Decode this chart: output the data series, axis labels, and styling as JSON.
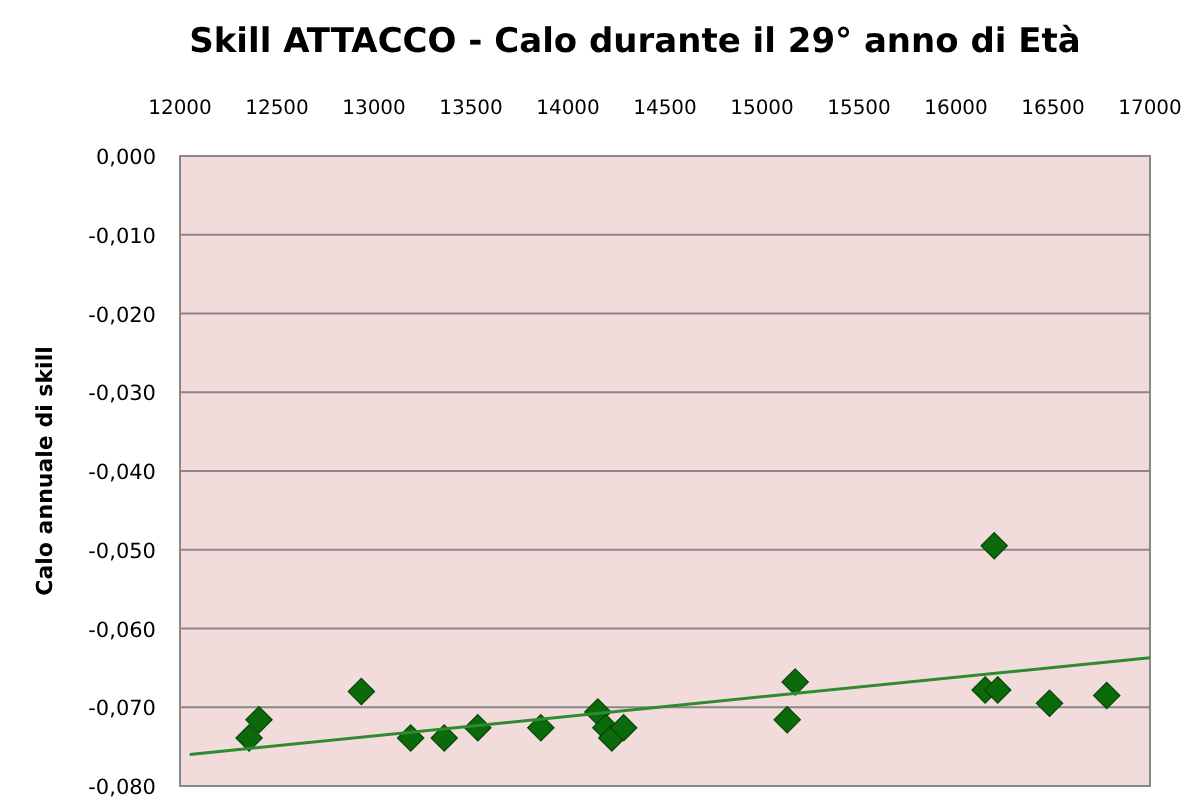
{
  "chart_data": {
    "type": "scatter",
    "title": "Skill ATTACCO - Calo durante il 29° anno di Età",
    "ylabel": "Calo annuale di skill",
    "xlim": [
      12000,
      17000
    ],
    "xticks": [
      12000,
      12500,
      13000,
      13500,
      14000,
      14500,
      15000,
      15500,
      16000,
      16500,
      17000
    ],
    "ylim": [
      -0.08,
      0
    ],
    "yticks": [
      {
        "value": 0,
        "label": "0,000"
      },
      {
        "value": -0.01,
        "label": "-0,010"
      },
      {
        "value": -0.02,
        "label": "-0,020"
      },
      {
        "value": -0.03,
        "label": "-0,030"
      },
      {
        "value": -0.04,
        "label": "-0,040"
      },
      {
        "value": -0.05,
        "label": "-0,050"
      },
      {
        "value": -0.06,
        "label": "-0,060"
      },
      {
        "value": -0.07,
        "label": "-0,070"
      },
      {
        "value": -0.08,
        "label": "-0,080"
      }
    ],
    "grid": "y",
    "marker": "diamond",
    "series": [
      {
        "color": "#0b6b0b",
        "x": [
          12356,
          12407,
          12935,
          13189,
          13362,
          13535,
          13860,
          14154,
          14195,
          14226,
          14287,
          15130,
          15171,
          16197,
          16150,
          16215,
          16482,
          16777
        ],
        "values": [
          -0.0739,
          -0.0716,
          -0.068,
          -0.0739,
          -0.0739,
          -0.0726,
          -0.0726,
          -0.0706,
          -0.0726,
          -0.0739,
          -0.0726,
          -0.0716,
          -0.0668,
          -0.0495,
          -0.0678,
          -0.0678,
          -0.0695,
          -0.0685
        ]
      },
      {
        "type": "line",
        "color": "#2e8b2e",
        "x": [
          12050,
          17000
        ],
        "values": [
          -0.076,
          -0.0637
        ],
        "marker": "none"
      }
    ]
  }
}
